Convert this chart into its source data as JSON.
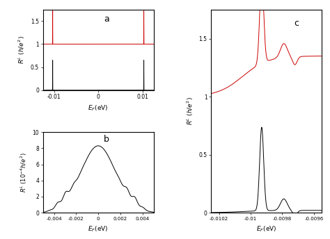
{
  "panel_a": {
    "label": "a",
    "xlim": [
      -0.0125,
      0.0125
    ],
    "ylim": [
      0,
      1.75
    ],
    "yticks": [
      0,
      0.5,
      1.0,
      1.5
    ],
    "xticks": [
      -0.01,
      0,
      0.01
    ],
    "xtick_labels": [
      "-0.01",
      "0",
      "0.01"
    ],
    "ytick_labels": [
      "0",
      "0.5",
      "1",
      "1.5"
    ]
  },
  "panel_b": {
    "label": "b",
    "xlim": [
      -0.005,
      0.005
    ],
    "ylim": [
      0,
      10
    ],
    "yticks": [
      0,
      2,
      4,
      6,
      8,
      10
    ],
    "xticks": [
      -0.004,
      -0.002,
      0,
      0.002,
      0.004
    ],
    "xtick_labels": [
      "-0.004",
      "-0.002",
      "0",
      "0.002",
      "0.004"
    ],
    "ytick_labels": [
      "0",
      "2",
      "4",
      "6",
      "8",
      "10"
    ]
  },
  "panel_c": {
    "label": "c",
    "xlim": [
      -0.01025,
      -0.00955
    ],
    "ylim": [
      0,
      1.75
    ],
    "yticks": [
      0,
      0.5,
      1.0,
      1.5
    ],
    "xticks": [
      -0.0102,
      -0.01,
      -0.0098,
      -0.0096
    ],
    "xtick_labels": [
      "-0.0102",
      "-0.01",
      "-0.0098",
      "-0.0096"
    ],
    "ytick_labels": [
      "0",
      "0.5",
      "1",
      "1.5"
    ]
  },
  "color_red": "#cc0000",
  "color_black": "#000000",
  "lw": 0.7
}
